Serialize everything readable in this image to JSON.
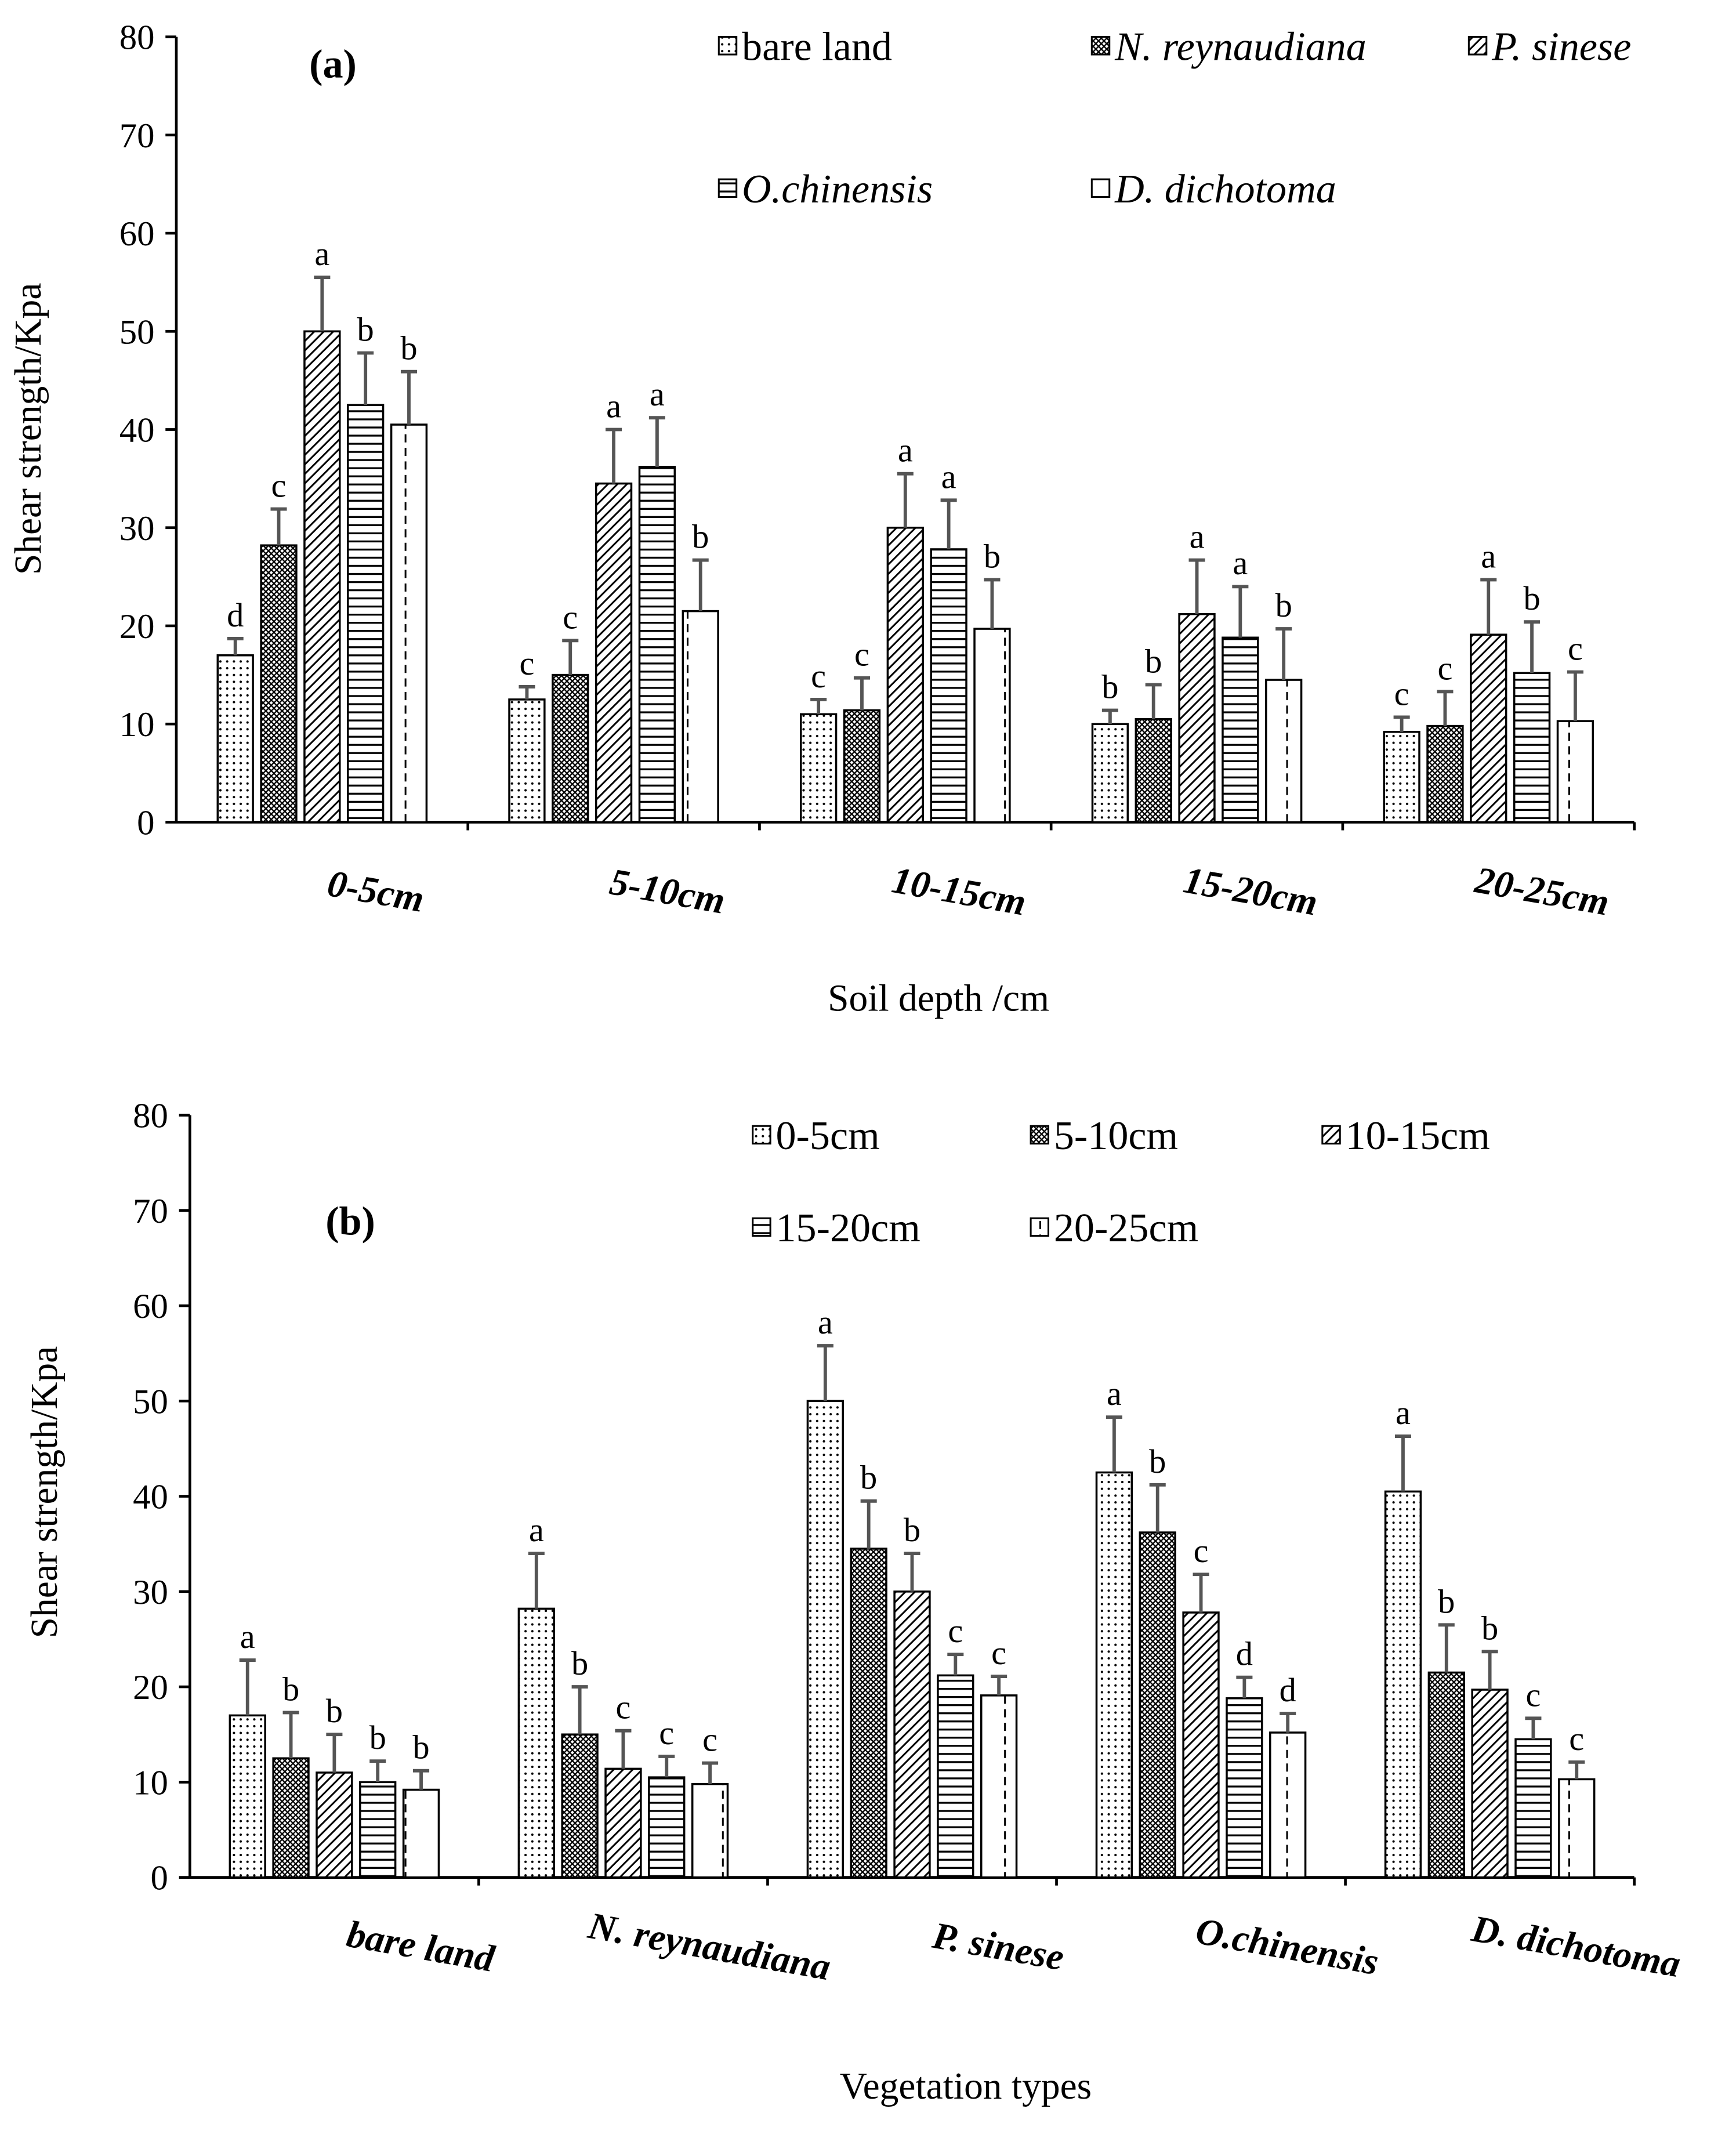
{
  "chart_data": [
    {
      "type": "bar",
      "title": "(a)",
      "xlabel": "Soil depth  /cm",
      "ylabel": "Shear strength/Kpa",
      "ylim": [
        0,
        80
      ],
      "yticks": [
        0,
        10,
        20,
        30,
        40,
        50,
        60,
        70,
        80
      ],
      "legend_position": "top-right",
      "categories": [
        "0-5cm",
        "5-10cm",
        "10-15cm",
        "15-20cm",
        "20-25cm"
      ],
      "series": [
        {
          "name": "bare land",
          "italic": false,
          "pattern": "dots",
          "values": [
            17,
            12.5,
            11,
            10,
            9.2
          ],
          "errors": [
            1.7,
            1.3,
            1.5,
            1.4,
            1.5
          ],
          "letters": [
            "d",
            "c",
            "c",
            "b",
            "c"
          ]
        },
        {
          "name": "N. reynaudiana",
          "italic": true,
          "pattern": "cross",
          "values": [
            28.2,
            15,
            11.4,
            10.5,
            9.8
          ],
          "errors": [
            3.7,
            3.5,
            3.3,
            3.5,
            3.5
          ],
          "letters": [
            "c",
            "c",
            "c",
            "b",
            "c"
          ]
        },
        {
          "name": "P. sinese",
          "italic": true,
          "pattern": "diag",
          "values": [
            50,
            34.5,
            30,
            21.2,
            19.1
          ],
          "errors": [
            5.5,
            5.5,
            5.5,
            5.5,
            5.6
          ],
          "letters": [
            "a",
            "a",
            "a",
            "a",
            "a"
          ]
        },
        {
          "name": "O.chinensis",
          "italic": true,
          "pattern": "horiz",
          "values": [
            42.5,
            36.2,
            27.8,
            18.8,
            15.2
          ],
          "errors": [
            5.3,
            5,
            5,
            5.2,
            5.2
          ],
          "letters": [
            "b",
            "a",
            "a",
            "a",
            "b"
          ]
        },
        {
          "name": "D. dichotoma",
          "italic": true,
          "pattern": "vdash",
          "values": [
            40.5,
            21.5,
            19.7,
            14.5,
            10.3
          ],
          "errors": [
            5.4,
            5.2,
            5,
            5.2,
            5
          ],
          "letters": [
            "b",
            "b",
            "b",
            "b",
            "c"
          ]
        }
      ]
    },
    {
      "type": "bar",
      "title": "(b)",
      "xlabel": "Vegetation types",
      "ylabel": "Shear strength/Kpa",
      "ylim": [
        0,
        80
      ],
      "yticks": [
        0,
        10,
        20,
        30,
        40,
        50,
        60,
        70,
        80
      ],
      "legend_position": "top-right",
      "categories": [
        "bare land",
        "N. reynaudiana",
        "P. sinese",
        "O.chinensis",
        "D. dichotoma"
      ],
      "series": [
        {
          "name": "0-5cm",
          "italic": false,
          "pattern": "dots",
          "values": [
            17,
            28.2,
            50,
            42.5,
            40.5
          ],
          "errors": [
            5.8,
            5.8,
            5.8,
            5.8,
            5.8
          ],
          "letters": [
            "a",
            "a",
            "a",
            "a",
            "a"
          ]
        },
        {
          "name": "5-10cm",
          "italic": false,
          "pattern": "cross",
          "values": [
            12.5,
            15,
            34.5,
            36.2,
            21.5
          ],
          "errors": [
            4.8,
            5,
            5,
            5,
            5
          ],
          "letters": [
            "b",
            "b",
            "b",
            "b",
            "b"
          ]
        },
        {
          "name": "10-15cm",
          "italic": false,
          "pattern": "diag",
          "values": [
            11,
            11.4,
            30,
            27.8,
            19.7
          ],
          "errors": [
            4,
            4,
            4,
            4,
            4
          ],
          "letters": [
            "b",
            "c",
            "b",
            "c",
            "b"
          ]
        },
        {
          "name": "15-20cm",
          "italic": false,
          "pattern": "horiz",
          "values": [
            10,
            10.5,
            21.2,
            18.8,
            14.5
          ],
          "errors": [
            2.2,
            2.2,
            2.2,
            2.2,
            2.2
          ],
          "letters": [
            "b",
            "c",
            "c",
            "d",
            "c"
          ]
        },
        {
          "name": "20-25cm",
          "italic": false,
          "pattern": "vdash",
          "values": [
            9.2,
            9.8,
            19.1,
            15.2,
            10.3
          ],
          "errors": [
            2,
            2.2,
            2,
            2,
            1.8
          ],
          "letters": [
            "b",
            "c",
            "c",
            "d",
            "c"
          ]
        }
      ]
    }
  ]
}
